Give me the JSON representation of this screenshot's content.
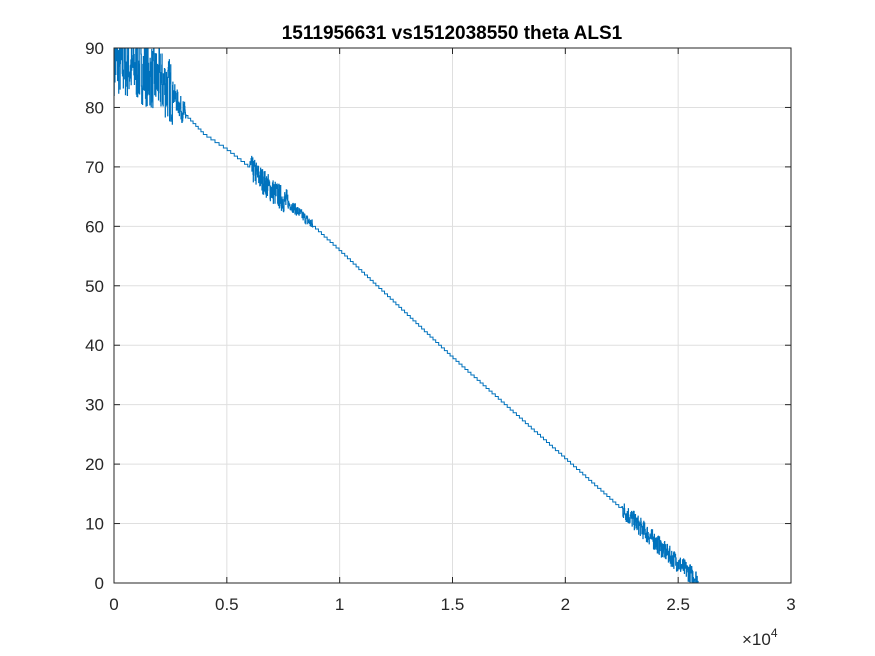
{
  "chart_data": {
    "type": "line",
    "title": "1511956631 vs1512038550 theta ALS1",
    "xlabel": "",
    "ylabel": "",
    "xlim": [
      0,
      30000
    ],
    "ylim": [
      0,
      90
    ],
    "x_ticks": [
      0,
      5000,
      10000,
      15000,
      20000,
      25000,
      30000
    ],
    "x_tick_labels": [
      "0",
      "0.5",
      "1",
      "1.5",
      "2",
      "2.5",
      "3"
    ],
    "x_exponent_label": "×10",
    "x_exponent_power": "4",
    "y_ticks": [
      0,
      10,
      20,
      30,
      40,
      50,
      60,
      70,
      80,
      90
    ],
    "y_tick_labels": [
      "0",
      "10",
      "20",
      "30",
      "40",
      "50",
      "60",
      "70",
      "80",
      "90"
    ],
    "grid": true,
    "line_color": "#0072BD",
    "series": [
      {
        "trend": [
          {
            "x": 0,
            "y": 87.5
          },
          {
            "x": 1000,
            "y": 86.5
          },
          {
            "x": 2000,
            "y": 84.5
          },
          {
            "x": 2600,
            "y": 82.5
          },
          {
            "x": 3000,
            "y": 79.5
          },
          {
            "x": 4000,
            "y": 75.5
          },
          {
            "x": 5000,
            "y": 73
          },
          {
            "x": 6000,
            "y": 70
          },
          {
            "x": 7000,
            "y": 66
          },
          {
            "x": 8000,
            "y": 63
          },
          {
            "x": 10000,
            "y": 56
          },
          {
            "x": 12500,
            "y": 47
          },
          {
            "x": 15000,
            "y": 38
          },
          {
            "x": 17500,
            "y": 29.5
          },
          {
            "x": 20000,
            "y": 21
          },
          {
            "x": 22500,
            "y": 12.5
          },
          {
            "x": 24500,
            "y": 5
          },
          {
            "x": 25400,
            "y": 2
          },
          {
            "x": 25900,
            "y": 0.5
          }
        ],
        "noise": [
          {
            "x_start": 0,
            "x_end": 2600,
            "amplitude": 5.5
          },
          {
            "x_start": 2600,
            "x_end": 3200,
            "amplitude": 2
          },
          {
            "x_start": 6000,
            "x_end": 7700,
            "amplitude": 2.2
          },
          {
            "x_start": 7700,
            "x_end": 8800,
            "amplitude": 0.9
          },
          {
            "x_start": 22500,
            "x_end": 25900,
            "amplitude": 1.6
          }
        ]
      }
    ]
  }
}
